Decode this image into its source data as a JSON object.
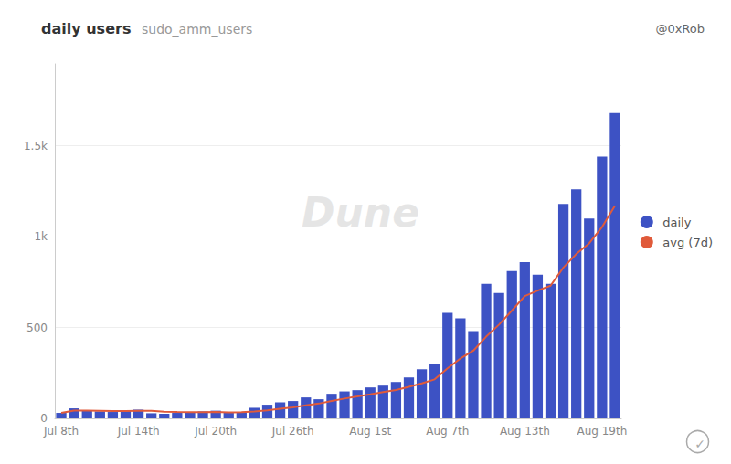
{
  "chart_data": {
    "type": "bar",
    "title": "daily users",
    "subtitle": "sudo_amm_users",
    "annotations": [
      "@0xRob",
      "Dune",
      "✓"
    ],
    "categories": [
      "Jul 8th",
      null,
      null,
      null,
      null,
      null,
      "Jul 14th",
      null,
      null,
      null,
      null,
      null,
      "Jul 20th",
      null,
      null,
      null,
      null,
      null,
      "Jul 26th",
      null,
      null,
      null,
      null,
      null,
      "Aug 1st",
      null,
      null,
      null,
      null,
      null,
      "Aug 7th",
      null,
      null,
      null,
      null,
      null,
      "Aug 13th",
      null,
      null,
      null,
      null,
      null,
      "Aug 19th",
      null
    ],
    "series": [
      {
        "name": "daily",
        "type": "bar",
        "color": "#3d52c4",
        "values": [
          30,
          55,
          45,
          38,
          35,
          40,
          48,
          28,
          25,
          30,
          32,
          38,
          42,
          35,
          32,
          58,
          75,
          88,
          95,
          115,
          105,
          135,
          148,
          155,
          170,
          180,
          200,
          225,
          270,
          300,
          580,
          550,
          480,
          740,
          690,
          810,
          860,
          790,
          740,
          1180,
          1260,
          1100,
          1440,
          1680
        ]
      },
      {
        "name": "avg (7d)",
        "type": "line",
        "color": "#e05a3a",
        "marker": "none",
        "values": [
          30,
          42.5,
          43.3333,
          42,
          40.6,
          40.5,
          41.5714,
          41.2857,
          37,
          34.8571,
          34,
          34.4286,
          34.7143,
          32.8571,
          33.4286,
          38.1429,
          44.5714,
          52.5714,
          60.7143,
          71.1429,
          81.1429,
          95.8571,
          108.7143,
          120.1429,
          131.8571,
          144,
          156.1429,
          173.2857,
          192.5714,
          214.2857,
          275,
          329.2857,
          372.1429,
          449.2857,
          515.7143,
          592.8571,
          672.8571,
          702.8571,
          730,
          830,
          904.2857,
          962.8571,
          1052.8571,
          1170
        ]
      }
    ],
    "ylim": [
      0,
      1950
    ],
    "yticks": [
      0,
      500,
      {
        "value": 1000,
        "label": "1k"
      },
      {
        "value": 1500,
        "label": "1.5k"
      }
    ],
    "grid": true,
    "legend": "right"
  }
}
